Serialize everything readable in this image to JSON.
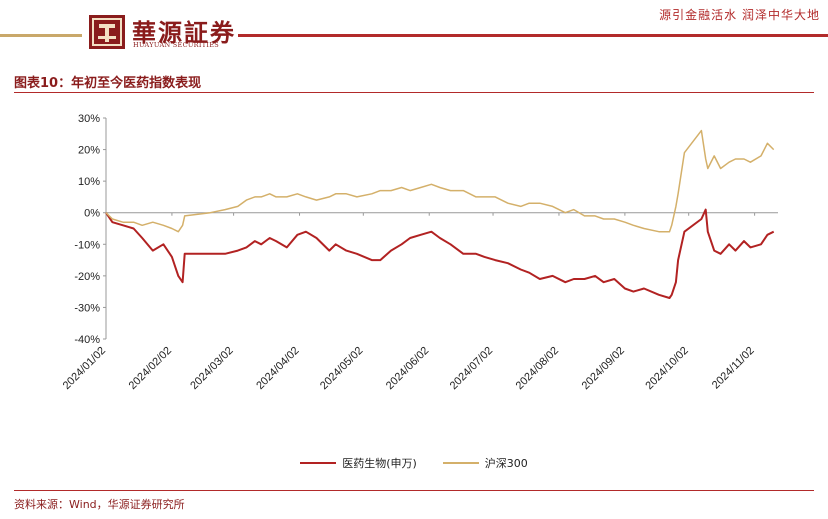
{
  "header": {
    "company_cn": "華源証券",
    "company_en": "HUAYUAN SECURITIES",
    "slogan": "源引金融活水 润泽中华大地",
    "brand_color": "#8a1c1c",
    "accent_color": "#c9a86a",
    "logo_icon": "square-seal-icon"
  },
  "figure": {
    "title": "图表10：年初至今医药指数表现",
    "source": "资料来源：Wind，华源证券研究所"
  },
  "chart_data": {
    "type": "line",
    "x_type": "date",
    "x_ticks": [
      "2024/01/02",
      "2024/02/02",
      "2024/03/02",
      "2024/04/02",
      "2024/05/02",
      "2024/06/02",
      "2024/07/02",
      "2024/08/02",
      "2024/09/02",
      "2024/10/02",
      "2024/11/02"
    ],
    "ylim": [
      -0.4,
      0.3
    ],
    "y_ticks": [
      "-40%",
      "-30%",
      "-20%",
      "-10%",
      "0%",
      "10%",
      "20%",
      "30%"
    ],
    "y_format": "percent",
    "grid": false,
    "legend_position": "bottom",
    "series": [
      {
        "name": "医药生物(申万)",
        "color": "#b22222",
        "points": [
          [
            "2024-01-02",
            0.0
          ],
          [
            "2024-01-05",
            -0.03
          ],
          [
            "2024-01-10",
            -0.04
          ],
          [
            "2024-01-15",
            -0.05
          ],
          [
            "2024-01-19",
            -0.08
          ],
          [
            "2024-01-24",
            -0.12
          ],
          [
            "2024-01-29",
            -0.1
          ],
          [
            "2024-02-02",
            -0.14
          ],
          [
            "2024-02-05",
            -0.2
          ],
          [
            "2024-02-07",
            -0.22
          ],
          [
            "2024-02-08",
            -0.13
          ],
          [
            "2024-02-20",
            -0.13
          ],
          [
            "2024-02-27",
            -0.13
          ],
          [
            "2024-03-04",
            -0.12
          ],
          [
            "2024-03-08",
            -0.11
          ],
          [
            "2024-03-12",
            -0.09
          ],
          [
            "2024-03-15",
            -0.1
          ],
          [
            "2024-03-19",
            -0.08
          ],
          [
            "2024-03-22",
            -0.09
          ],
          [
            "2024-03-27",
            -0.11
          ],
          [
            "2024-04-01",
            -0.07
          ],
          [
            "2024-04-05",
            -0.06
          ],
          [
            "2024-04-10",
            -0.08
          ],
          [
            "2024-04-16",
            -0.12
          ],
          [
            "2024-04-19",
            -0.1
          ],
          [
            "2024-04-24",
            -0.12
          ],
          [
            "2024-04-29",
            -0.13
          ],
          [
            "2024-05-06",
            -0.15
          ],
          [
            "2024-05-10",
            -0.15
          ],
          [
            "2024-05-15",
            -0.12
          ],
          [
            "2024-05-20",
            -0.1
          ],
          [
            "2024-05-24",
            -0.08
          ],
          [
            "2024-05-29",
            -0.07
          ],
          [
            "2024-06-03",
            -0.06
          ],
          [
            "2024-06-07",
            -0.08
          ],
          [
            "2024-06-12",
            -0.1
          ],
          [
            "2024-06-18",
            -0.13
          ],
          [
            "2024-06-24",
            -0.13
          ],
          [
            "2024-06-28",
            -0.14
          ],
          [
            "2024-07-03",
            -0.15
          ],
          [
            "2024-07-09",
            -0.16
          ],
          [
            "2024-07-15",
            -0.18
          ],
          [
            "2024-07-19",
            -0.19
          ],
          [
            "2024-07-24",
            -0.21
          ],
          [
            "2024-07-30",
            -0.2
          ],
          [
            "2024-08-05",
            -0.22
          ],
          [
            "2024-08-09",
            -0.21
          ],
          [
            "2024-08-14",
            -0.21
          ],
          [
            "2024-08-19",
            -0.2
          ],
          [
            "2024-08-23",
            -0.22
          ],
          [
            "2024-08-28",
            -0.21
          ],
          [
            "2024-09-02",
            -0.24
          ],
          [
            "2024-09-06",
            -0.25
          ],
          [
            "2024-09-11",
            -0.24
          ],
          [
            "2024-09-18",
            -0.26
          ],
          [
            "2024-09-23",
            -0.27
          ],
          [
            "2024-09-24",
            -0.26
          ],
          [
            "2024-09-26",
            -0.22
          ],
          [
            "2024-09-27",
            -0.15
          ],
          [
            "2024-09-30",
            -0.06
          ],
          [
            "2024-10-08",
            -0.02
          ],
          [
            "2024-10-10",
            0.01
          ],
          [
            "2024-10-11",
            -0.06
          ],
          [
            "2024-10-14",
            -0.12
          ],
          [
            "2024-10-17",
            -0.13
          ],
          [
            "2024-10-21",
            -0.1
          ],
          [
            "2024-10-24",
            -0.12
          ],
          [
            "2024-10-28",
            -0.09
          ],
          [
            "2024-10-31",
            -0.11
          ],
          [
            "2024-11-05",
            -0.1
          ],
          [
            "2024-11-08",
            -0.07
          ],
          [
            "2024-11-11",
            -0.06
          ]
        ]
      },
      {
        "name": "沪深300",
        "color": "#d4b06a",
        "points": [
          [
            "2024-01-02",
            0.0
          ],
          [
            "2024-01-05",
            -0.02
          ],
          [
            "2024-01-10",
            -0.03
          ],
          [
            "2024-01-15",
            -0.03
          ],
          [
            "2024-01-19",
            -0.04
          ],
          [
            "2024-01-24",
            -0.03
          ],
          [
            "2024-01-29",
            -0.04
          ],
          [
            "2024-02-02",
            -0.05
          ],
          [
            "2024-02-05",
            -0.06
          ],
          [
            "2024-02-07",
            -0.04
          ],
          [
            "2024-02-08",
            -0.01
          ],
          [
            "2024-02-20",
            0.0
          ],
          [
            "2024-02-27",
            0.01
          ],
          [
            "2024-03-04",
            0.02
          ],
          [
            "2024-03-08",
            0.04
          ],
          [
            "2024-03-12",
            0.05
          ],
          [
            "2024-03-15",
            0.05
          ],
          [
            "2024-03-19",
            0.06
          ],
          [
            "2024-03-22",
            0.05
          ],
          [
            "2024-03-27",
            0.05
          ],
          [
            "2024-04-01",
            0.06
          ],
          [
            "2024-04-05",
            0.05
          ],
          [
            "2024-04-10",
            0.04
          ],
          [
            "2024-04-16",
            0.05
          ],
          [
            "2024-04-19",
            0.06
          ],
          [
            "2024-04-24",
            0.06
          ],
          [
            "2024-04-29",
            0.05
          ],
          [
            "2024-05-06",
            0.06
          ],
          [
            "2024-05-10",
            0.07
          ],
          [
            "2024-05-15",
            0.07
          ],
          [
            "2024-05-20",
            0.08
          ],
          [
            "2024-05-24",
            0.07
          ],
          [
            "2024-05-29",
            0.08
          ],
          [
            "2024-06-03",
            0.09
          ],
          [
            "2024-06-07",
            0.08
          ],
          [
            "2024-06-12",
            0.07
          ],
          [
            "2024-06-18",
            0.07
          ],
          [
            "2024-06-24",
            0.05
          ],
          [
            "2024-06-28",
            0.05
          ],
          [
            "2024-07-03",
            0.05
          ],
          [
            "2024-07-09",
            0.03
          ],
          [
            "2024-07-15",
            0.02
          ],
          [
            "2024-07-19",
            0.03
          ],
          [
            "2024-07-24",
            0.03
          ],
          [
            "2024-07-30",
            0.02
          ],
          [
            "2024-08-05",
            0.0
          ],
          [
            "2024-08-09",
            0.01
          ],
          [
            "2024-08-14",
            -0.01
          ],
          [
            "2024-08-19",
            -0.01
          ],
          [
            "2024-08-23",
            -0.02
          ],
          [
            "2024-08-28",
            -0.02
          ],
          [
            "2024-09-02",
            -0.03
          ],
          [
            "2024-09-06",
            -0.04
          ],
          [
            "2024-09-11",
            -0.05
          ],
          [
            "2024-09-18",
            -0.06
          ],
          [
            "2024-09-23",
            -0.06
          ],
          [
            "2024-09-24",
            -0.04
          ],
          [
            "2024-09-26",
            0.02
          ],
          [
            "2024-09-27",
            0.06
          ],
          [
            "2024-09-30",
            0.19
          ],
          [
            "2024-10-08",
            0.26
          ],
          [
            "2024-10-10",
            0.17
          ],
          [
            "2024-10-11",
            0.14
          ],
          [
            "2024-10-14",
            0.18
          ],
          [
            "2024-10-17",
            0.14
          ],
          [
            "2024-10-21",
            0.16
          ],
          [
            "2024-10-24",
            0.17
          ],
          [
            "2024-10-28",
            0.17
          ],
          [
            "2024-10-31",
            0.16
          ],
          [
            "2024-11-05",
            0.18
          ],
          [
            "2024-11-08",
            0.22
          ],
          [
            "2024-11-11",
            0.2
          ]
        ]
      }
    ]
  }
}
